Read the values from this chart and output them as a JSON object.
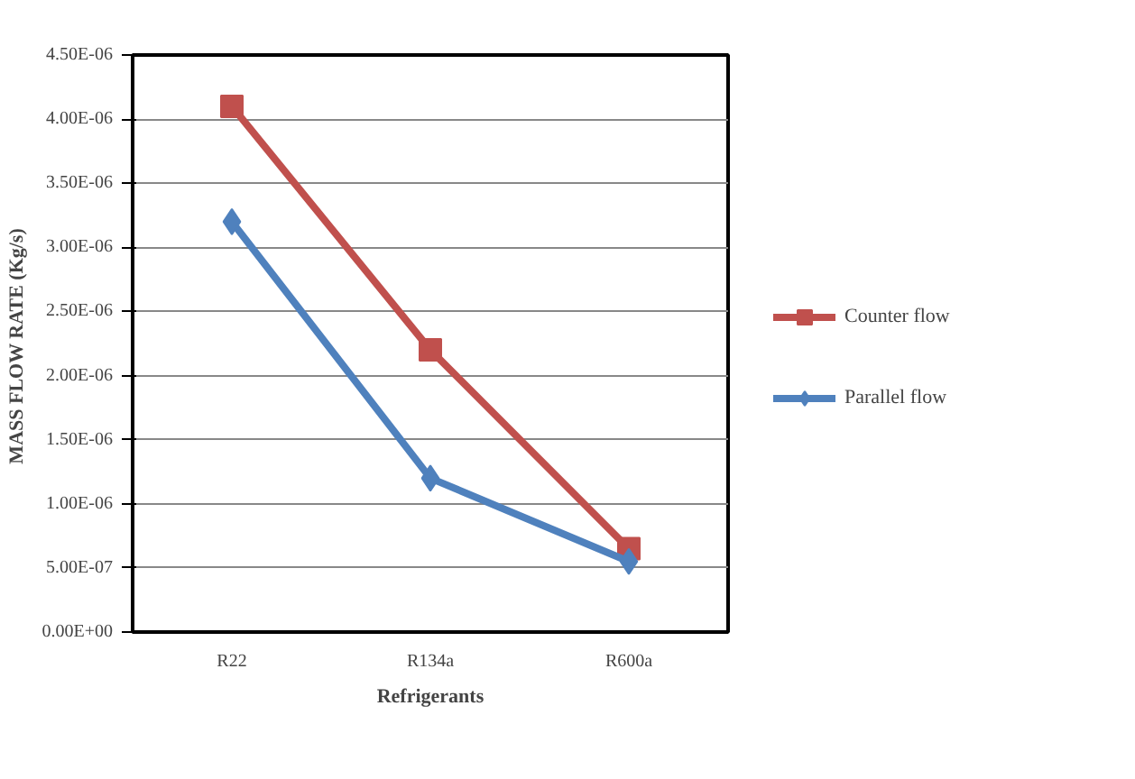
{
  "chart_data": {
    "type": "line",
    "xlabel": "Refrigerants",
    "ylabel": "MASS FLOW RATE  (Kg/s)",
    "categories": [
      "R22",
      "R134a",
      "R600a"
    ],
    "series": [
      {
        "name": "Counter flow",
        "color": "#c0504d",
        "marker": "square",
        "values": [
          4.1e-06,
          2.2e-06,
          6.5e-07
        ]
      },
      {
        "name": "Parallel flow",
        "color": "#4f81bd",
        "marker": "diamond",
        "values": [
          3.2e-06,
          1.2e-06,
          5.5e-07
        ]
      }
    ],
    "ylim": [
      0,
      4.5e-06
    ],
    "yticks": [
      {
        "value": 0,
        "label": "0.00E+00"
      },
      {
        "value": 5e-07,
        "label": "5.00E-07"
      },
      {
        "value": 1e-06,
        "label": "1.00E-06"
      },
      {
        "value": 1.5e-06,
        "label": "1.50E-06"
      },
      {
        "value": 2e-06,
        "label": "2.00E-06"
      },
      {
        "value": 2.5e-06,
        "label": "2.50E-06"
      },
      {
        "value": 3e-06,
        "label": "3.00E-06"
      },
      {
        "value": 3.5e-06,
        "label": "3.50E-06"
      },
      {
        "value": 4e-06,
        "label": "4.00E-06"
      },
      {
        "value": 4.5e-06,
        "label": "4.50E-06"
      }
    ],
    "grid": "y",
    "legend": "right",
    "line_style": "solid"
  }
}
